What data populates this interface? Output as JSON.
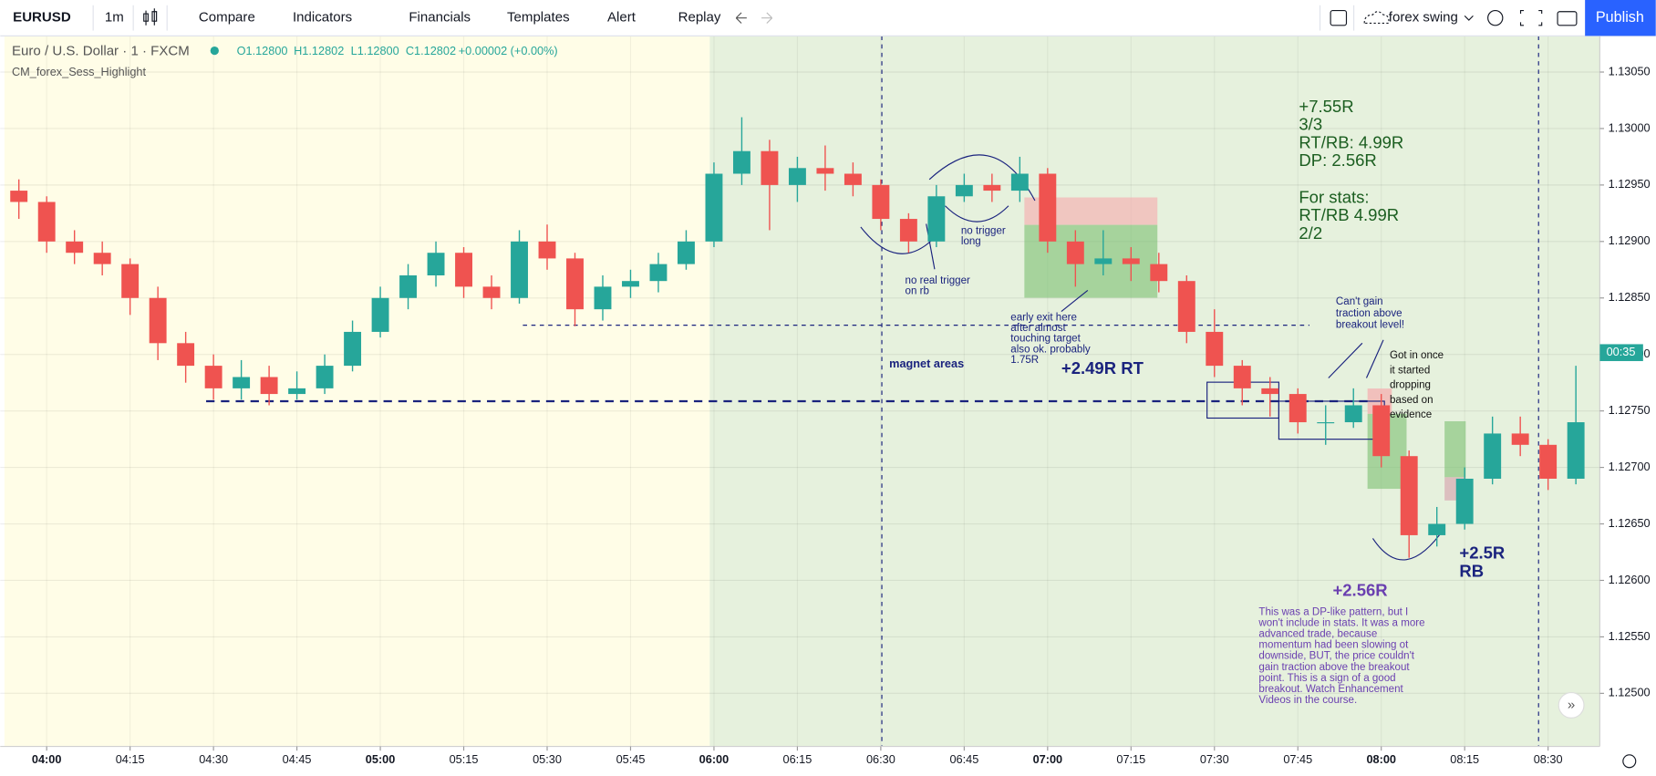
{
  "toolbar": {
    "symbol": "EURUSD",
    "interval": "1m",
    "buttons": [
      "Compare",
      "Indicators",
      "Financials",
      "Templates",
      "Alert",
      "Replay"
    ],
    "layout_name": "forex swing",
    "publish": "Publish"
  },
  "legend": {
    "title": "Euro / U.S. Dollar · 1 · FXCM",
    "ohlc": [
      "O1.12800",
      "H1.12802",
      "L1.12800",
      "C1.12802",
      "+0.00002 (+0.00%)"
    ],
    "indicator": "CM_forex_Sess_Highlight"
  },
  "chart_data": {
    "type": "candlestick",
    "x": [
      235,
      240,
      245,
      250,
      255,
      260,
      265,
      270,
      275,
      280,
      285,
      290,
      295,
      300,
      305,
      310,
      315,
      320,
      325,
      330,
      335,
      340,
      345,
      350,
      355,
      360,
      365,
      370,
      375,
      380,
      385,
      390,
      395,
      400,
      405,
      410,
      415,
      420,
      425,
      430,
      435,
      440,
      445,
      450,
      455,
      460,
      465,
      470,
      475,
      480,
      485,
      490,
      495,
      500,
      505,
      510,
      515
    ],
    "open": [
      1.12945,
      1.12935,
      1.129,
      1.1289,
      1.1288,
      1.1285,
      1.1281,
      1.1279,
      1.1277,
      1.1278,
      1.12765,
      1.1277,
      1.1279,
      1.1282,
      1.1285,
      1.1287,
      1.1289,
      1.1286,
      1.1285,
      1.129,
      1.12885,
      1.1284,
      1.1286,
      1.12865,
      1.1288,
      1.129,
      1.1296,
      1.1298,
      1.1295,
      1.12965,
      1.1296,
      1.1295,
      1.1292,
      1.129,
      1.1294,
      1.1295,
      1.12945,
      1.1296,
      1.129,
      1.1288,
      1.12885,
      1.1288,
      1.12865,
      1.1282,
      1.1279,
      1.1277,
      1.12765,
      1.1274,
      1.1274,
      1.12755,
      1.1271,
      1.1264,
      1.1265,
      1.1269,
      1.1273,
      1.1272,
      1.1269
    ],
    "high": [
      1.12955,
      1.1294,
      1.1291,
      1.129,
      1.12885,
      1.1286,
      1.1282,
      1.128,
      1.12795,
      1.1279,
      1.12785,
      1.128,
      1.1283,
      1.1286,
      1.1288,
      1.129,
      1.12895,
      1.1287,
      1.1291,
      1.12915,
      1.1289,
      1.1287,
      1.12875,
      1.1289,
      1.1291,
      1.1297,
      1.1301,
      1.1299,
      1.12975,
      1.12985,
      1.1297,
      1.12955,
      1.12925,
      1.1295,
      1.1296,
      1.1296,
      1.12975,
      1.12965,
      1.1291,
      1.1291,
      1.12895,
      1.1289,
      1.1287,
      1.1284,
      1.12795,
      1.1278,
      1.1277,
      1.12755,
      1.1277,
      1.12765,
      1.12715,
      1.12665,
      1.127,
      1.12745,
      1.12745,
      1.12725,
      1.1279
    ],
    "low": [
      1.1292,
      1.1289,
      1.1288,
      1.1287,
      1.12835,
      1.12795,
      1.12775,
      1.1276,
      1.1276,
      1.12755,
      1.1276,
      1.12765,
      1.12785,
      1.12815,
      1.1284,
      1.1286,
      1.1285,
      1.1284,
      1.12845,
      1.12875,
      1.12825,
      1.1283,
      1.1285,
      1.12855,
      1.12875,
      1.12895,
      1.1295,
      1.1291,
      1.12935,
      1.12945,
      1.1294,
      1.1291,
      1.1289,
      1.12895,
      1.12935,
      1.12935,
      1.12935,
      1.1289,
      1.1286,
      1.1287,
      1.12865,
      1.12855,
      1.1281,
      1.1278,
      1.12755,
      1.12745,
      1.1273,
      1.1272,
      1.12735,
      1.127,
      1.1262,
      1.1263,
      1.12645,
      1.12685,
      1.1271,
      1.1268,
      1.12685
    ],
    "close": [
      1.12935,
      1.129,
      1.1289,
      1.1288,
      1.1285,
      1.1281,
      1.1279,
      1.1277,
      1.1278,
      1.12765,
      1.1277,
      1.1279,
      1.1282,
      1.1285,
      1.1287,
      1.1289,
      1.1286,
      1.1285,
      1.129,
      1.12885,
      1.1284,
      1.1286,
      1.12865,
      1.1288,
      1.129,
      1.1296,
      1.1298,
      1.1295,
      1.12965,
      1.1296,
      1.1295,
      1.1292,
      1.129,
      1.1294,
      1.1295,
      1.12945,
      1.1296,
      1.129,
      1.1288,
      1.12885,
      1.1288,
      1.12865,
      1.1282,
      1.1279,
      1.1277,
      1.12765,
      1.1274,
      1.1274,
      1.12755,
      1.1271,
      1.1264,
      1.1265,
      1.1269,
      1.1273,
      1.1272,
      1.1269,
      1.1274
    ],
    "colors": {
      "up": "#26a69a",
      "down": "#ef5350"
    },
    "xlim": [
      231.65,
      519.3
    ],
    "ylim": [
      1.12453,
      1.13082
    ],
    "xticks": [
      {
        "value": 240,
        "label": "04:00"
      },
      {
        "value": 255,
        "label": "04:15"
      },
      {
        "value": 270,
        "label": "04:30"
      },
      {
        "value": 285,
        "label": "04:45"
      },
      {
        "value": 300,
        "label": "05:00"
      },
      {
        "value": 315,
        "label": "05:15"
      },
      {
        "value": 330,
        "label": "05:30"
      },
      {
        "value": 345,
        "label": "05:45"
      },
      {
        "value": 360,
        "label": "06:00"
      },
      {
        "value": 375,
        "label": "06:15"
      },
      {
        "value": 390,
        "label": "06:30"
      },
      {
        "value": 405,
        "label": "06:45"
      },
      {
        "value": 420,
        "label": "07:00"
      },
      {
        "value": 435,
        "label": "07:15"
      },
      {
        "value": 450,
        "label": "07:30"
      },
      {
        "value": 465,
        "label": "07:45"
      },
      {
        "value": 480,
        "label": "08:00"
      },
      {
        "value": 495,
        "label": "08:15"
      },
      {
        "value": 510,
        "label": "08:30"
      }
    ],
    "yticks": [
      {
        "value": 1.1305,
        "label": "1.13050"
      },
      {
        "value": 1.13,
        "label": "1.13000"
      },
      {
        "value": 1.1295,
        "label": "1.12950"
      },
      {
        "value": 1.129,
        "label": "1.12900"
      },
      {
        "value": 1.1285,
        "label": "1.12850"
      },
      {
        "value": 1.128,
        "label": "1.12800"
      },
      {
        "value": 1.1275,
        "label": "1.12750"
      },
      {
        "value": 1.127,
        "label": "1.12700"
      },
      {
        "value": 1.1265,
        "label": "1.12650"
      },
      {
        "value": 1.126,
        "label": "1.12600"
      },
      {
        "value": 1.1255,
        "label": "1.12550"
      },
      {
        "value": 1.125,
        "label": "1.12500"
      }
    ],
    "grid": true,
    "countdown": "00:35",
    "stats": [
      "+7.55R",
      "3/3",
      "RT/RB: 4.99R",
      "DP: 2.56R",
      "For stats:",
      "RT/RB 4.99R",
      "2/2"
    ],
    "annotations": [
      {
        "lines": [
          "no real trigger",
          "on rb"
        ]
      },
      {
        "lines": [
          "no trigger",
          "long"
        ]
      },
      {
        "lines": [
          "early exit here",
          "after almost",
          "touching target",
          "also ok. probably",
          "1.75R"
        ]
      },
      {
        "lines": [
          "magnet areas"
        ]
      },
      {
        "lines": [
          "+2.49R RT"
        ]
      },
      {
        "lines": [
          "Can't gain",
          "traction above",
          "breakout level!"
        ]
      },
      {
        "lines": [
          "Got in once",
          "it started",
          "dropping",
          "based on",
          "evidence"
        ]
      },
      {
        "lines": [
          "+2.56R"
        ]
      },
      {
        "lines": [
          "This was a DP-like pattern, but I",
          "won't include in stats. It was a more",
          "advanced trade, because",
          "momentum had been slowing ot",
          "downside, BUT, the price couldn't",
          "gain traction above the breakout",
          "point. This is a sign of a good",
          "breakout. Watch Enhancement",
          "Videos in the course."
        ]
      },
      {
        "lines": [
          "+2.5R",
          "RB"
        ]
      }
    ]
  }
}
